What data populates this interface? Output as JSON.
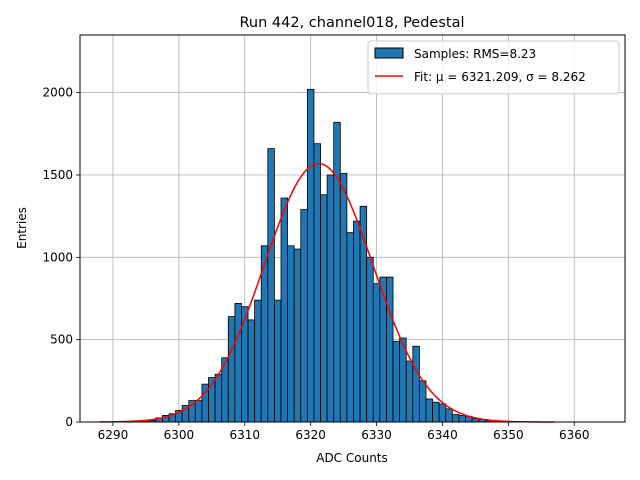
{
  "chart_data": {
    "type": "bar",
    "title": "Run 442, channel018, Pedestal",
    "xlabel": "ADC Counts",
    "ylabel": "Entries",
    "xlim": [
      6285.0,
      6367.7
    ],
    "ylim": [
      0,
      2350
    ],
    "xticks": [
      6290,
      6300,
      6310,
      6320,
      6330,
      6340,
      6350,
      6360
    ],
    "yticks": [
      0,
      500,
      1000,
      1500,
      2000
    ],
    "grid": true,
    "legend_position": "top-right",
    "bin_width": 1,
    "series": [
      {
        "name": "Samples: RMS=8.23",
        "kind": "histogram",
        "color": "#1f77b4",
        "bins": [
          {
            "x": 6295,
            "y": 5
          },
          {
            "x": 6296,
            "y": 10
          },
          {
            "x": 6297,
            "y": 25
          },
          {
            "x": 6298,
            "y": 40
          },
          {
            "x": 6299,
            "y": 50
          },
          {
            "x": 6300,
            "y": 70
          },
          {
            "x": 6301,
            "y": 100
          },
          {
            "x": 6302,
            "y": 130
          },
          {
            "x": 6303,
            "y": 130
          },
          {
            "x": 6304,
            "y": 230
          },
          {
            "x": 6305,
            "y": 270
          },
          {
            "x": 6306,
            "y": 290
          },
          {
            "x": 6307,
            "y": 390
          },
          {
            "x": 6308,
            "y": 640
          },
          {
            "x": 6309,
            "y": 720
          },
          {
            "x": 6310,
            "y": 700
          },
          {
            "x": 6311,
            "y": 620
          },
          {
            "x": 6312,
            "y": 740
          },
          {
            "x": 6313,
            "y": 1070
          },
          {
            "x": 6314,
            "y": 1660
          },
          {
            "x": 6315,
            "y": 740
          },
          {
            "x": 6316,
            "y": 1360
          },
          {
            "x": 6317,
            "y": 1070
          },
          {
            "x": 6318,
            "y": 1050
          },
          {
            "x": 6319,
            "y": 1290
          },
          {
            "x": 6320,
            "y": 2020
          },
          {
            "x": 6321,
            "y": 1690
          },
          {
            "x": 6322,
            "y": 1380
          },
          {
            "x": 6323,
            "y": 1500
          },
          {
            "x": 6324,
            "y": 1820
          },
          {
            "x": 6325,
            "y": 1510
          },
          {
            "x": 6326,
            "y": 1150
          },
          {
            "x": 6327,
            "y": 1220
          },
          {
            "x": 6328,
            "y": 1310
          },
          {
            "x": 6329,
            "y": 1000
          },
          {
            "x": 6330,
            "y": 840
          },
          {
            "x": 6331,
            "y": 880
          },
          {
            "x": 6332,
            "y": 880
          },
          {
            "x": 6333,
            "y": 490
          },
          {
            "x": 6334,
            "y": 510
          },
          {
            "x": 6335,
            "y": 370
          },
          {
            "x": 6336,
            "y": 460
          },
          {
            "x": 6337,
            "y": 250
          },
          {
            "x": 6338,
            "y": 140
          },
          {
            "x": 6339,
            "y": 120
          },
          {
            "x": 6340,
            "y": 110
          },
          {
            "x": 6341,
            "y": 80
          },
          {
            "x": 6342,
            "y": 45
          },
          {
            "x": 6343,
            "y": 40
          },
          {
            "x": 6344,
            "y": 35
          },
          {
            "x": 6345,
            "y": 20
          },
          {
            "x": 6346,
            "y": 15
          },
          {
            "x": 6347,
            "y": 8
          },
          {
            "x": 6348,
            "y": 5
          }
        ]
      },
      {
        "name": "Fit: μ = 6321.209, σ = 8.262",
        "kind": "line",
        "color": "#ff0000",
        "gaussian": {
          "mu": 6321.209,
          "sigma": 8.262,
          "amplitude": 1570
        },
        "x_range": [
          6288,
          6357
        ]
      }
    ]
  }
}
